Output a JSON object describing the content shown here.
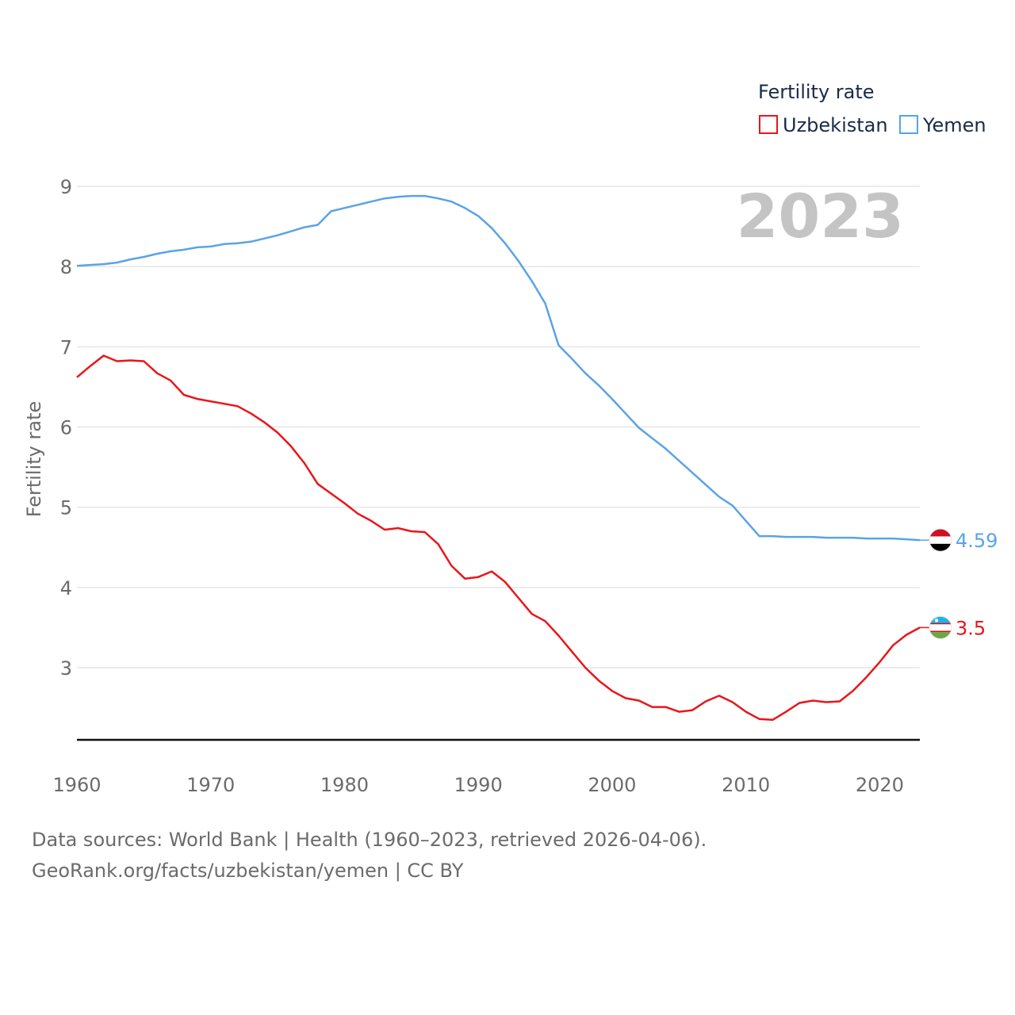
{
  "chart_data": {
    "type": "line",
    "year_label": "2023",
    "ylabel": "Fertility rate",
    "legend_title": "Fertility rate",
    "xlim": [
      1960,
      2023
    ],
    "ylim": [
      2.1,
      9.0
    ],
    "yticks": [
      "3",
      "4",
      "5",
      "6",
      "7",
      "8",
      "9"
    ],
    "xticks": [
      "1960",
      "1970",
      "1980",
      "1990",
      "2000",
      "2010",
      "2020"
    ],
    "x": [
      1960,
      1961,
      1962,
      1963,
      1964,
      1965,
      1966,
      1967,
      1968,
      1969,
      1970,
      1971,
      1972,
      1973,
      1974,
      1975,
      1976,
      1977,
      1978,
      1979,
      1980,
      1981,
      1982,
      1983,
      1984,
      1985,
      1986,
      1987,
      1988,
      1989,
      1990,
      1991,
      1992,
      1993,
      1994,
      1995,
      1996,
      1997,
      1998,
      1999,
      2000,
      2001,
      2002,
      2003,
      2004,
      2005,
      2006,
      2007,
      2008,
      2009,
      2010,
      2011,
      2012,
      2013,
      2014,
      2015,
      2016,
      2017,
      2018,
      2019,
      2020,
      2021,
      2022,
      2023
    ],
    "series": [
      {
        "name": "Uzbekistan",
        "color": "#e8161b",
        "end_label": "3.5",
        "flag": "uzbekistan-flag",
        "values": [
          6.62,
          6.76,
          6.89,
          6.82,
          6.83,
          6.82,
          6.67,
          6.58,
          6.4,
          6.35,
          6.32,
          6.29,
          6.26,
          6.17,
          6.06,
          5.93,
          5.76,
          5.55,
          5.29,
          5.17,
          5.05,
          4.92,
          4.83,
          4.72,
          4.74,
          4.7,
          4.69,
          4.54,
          4.27,
          4.11,
          4.13,
          4.2,
          4.07,
          3.87,
          3.67,
          3.58,
          3.4,
          3.2,
          3.0,
          2.84,
          2.71,
          2.62,
          2.59,
          2.51,
          2.51,
          2.45,
          2.47,
          2.58,
          2.65,
          2.57,
          2.45,
          2.36,
          2.35,
          2.45,
          2.56,
          2.59,
          2.57,
          2.58,
          2.71,
          2.88,
          3.07,
          3.28,
          3.41,
          3.5
        ]
      },
      {
        "name": "Yemen",
        "color": "#5aa3e6",
        "end_label": "4.59",
        "flag": "yemen-flag",
        "values": [
          8.01,
          8.02,
          8.03,
          8.05,
          8.09,
          8.12,
          8.16,
          8.19,
          8.21,
          8.24,
          8.25,
          8.28,
          8.29,
          8.31,
          8.35,
          8.39,
          8.44,
          8.49,
          8.52,
          8.69,
          8.73,
          8.77,
          8.81,
          8.85,
          8.87,
          8.88,
          8.88,
          8.85,
          8.81,
          8.73,
          8.63,
          8.48,
          8.29,
          8.07,
          7.82,
          7.54,
          7.02,
          6.85,
          6.67,
          6.52,
          6.35,
          6.17,
          5.99,
          5.86,
          5.73,
          5.58,
          5.43,
          5.28,
          5.13,
          5.02,
          4.83,
          4.64,
          4.64,
          4.63,
          4.63,
          4.63,
          4.62,
          4.62,
          4.62,
          4.61,
          4.61,
          4.61,
          4.6,
          4.59
        ]
      }
    ]
  },
  "footer": {
    "line1": "Data sources: World Bank | Health (1960–2023, retrieved 2026-04-06).",
    "line2": "GeoRank.org/facts/uzbekistan/yemen | CC BY"
  }
}
